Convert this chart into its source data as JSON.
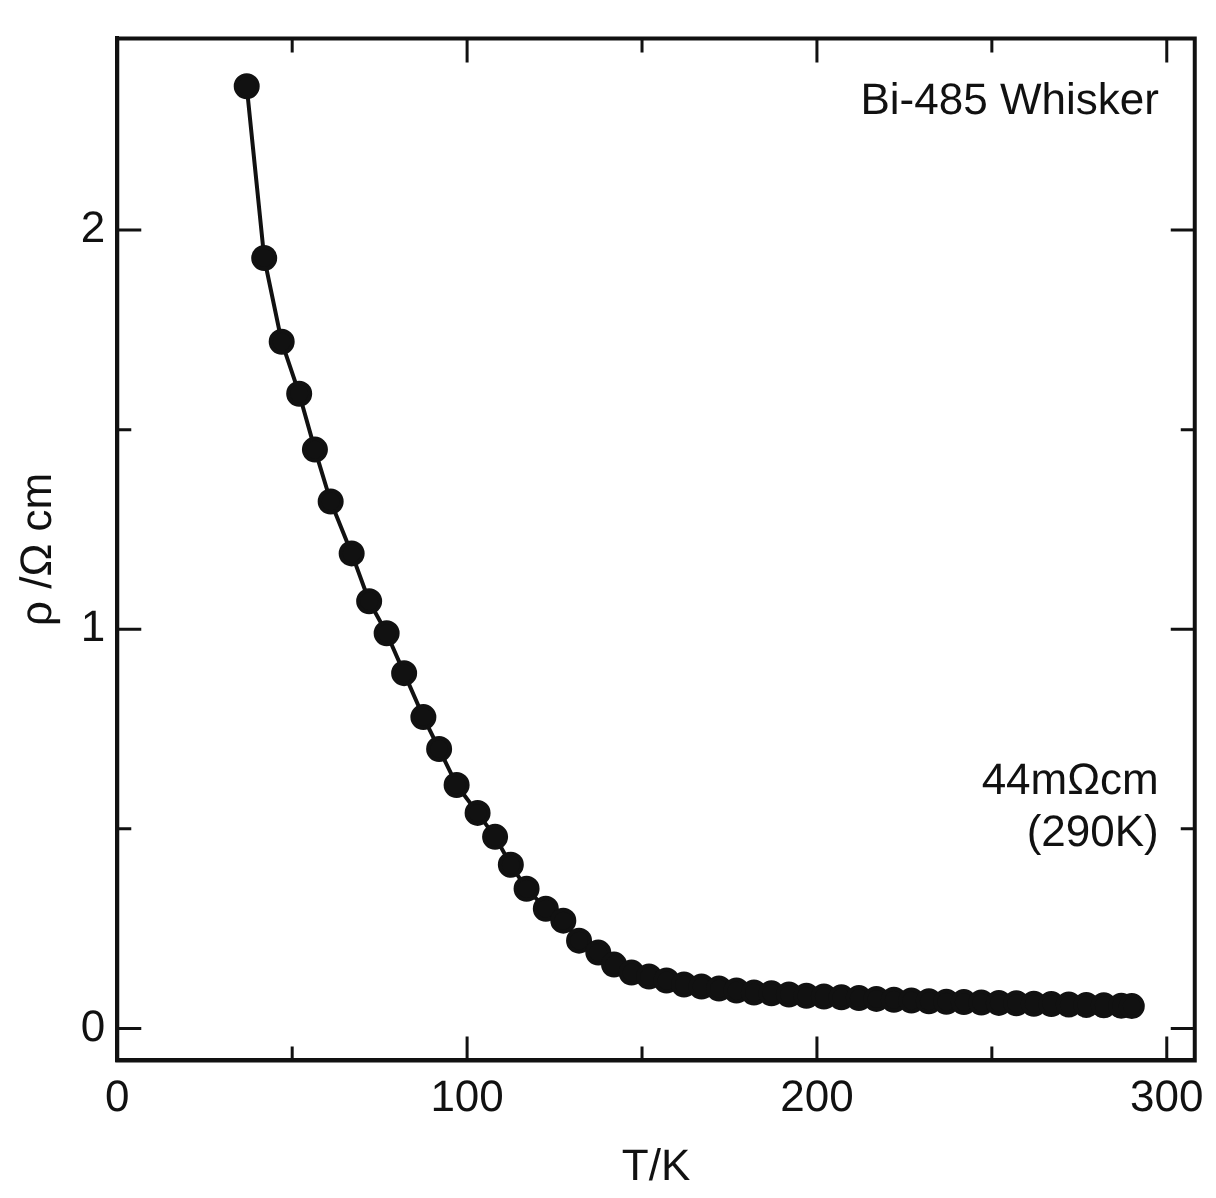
{
  "chart_data": {
    "type": "line",
    "xlabel": "T/K",
    "ylabel": "ρ /Ω cm",
    "annotations": [
      "Bi-485 Whisker",
      "44mΩcm (290K)"
    ],
    "x": [
      37,
      42,
      47,
      52,
      56.5,
      61,
      67,
      72,
      77,
      82,
      87.5,
      92,
      97,
      103,
      108,
      112.5,
      117,
      122.5,
      127.5,
      132,
      137.5,
      142,
      147,
      152,
      157,
      162,
      167,
      172,
      177,
      182,
      187,
      192,
      197,
      202,
      207,
      212,
      217,
      222,
      227,
      232,
      237,
      242,
      247,
      252,
      257,
      262,
      267,
      272,
      277,
      282,
      287,
      290
    ],
    "series": [
      {
        "color": "#111111",
        "values": [
          2.36,
          1.93,
          1.72,
          1.59,
          1.45,
          1.32,
          1.19,
          1.07,
          0.99,
          0.89,
          0.78,
          0.7,
          0.61,
          0.54,
          0.48,
          0.41,
          0.35,
          0.3,
          0.27,
          0.22,
          0.19,
          0.16,
          0.14,
          0.13,
          0.12,
          0.11,
          0.105,
          0.1,
          0.095,
          0.09,
          0.088,
          0.085,
          0.082,
          0.08,
          0.078,
          0.076,
          0.074,
          0.072,
          0.07,
          0.068,
          0.067,
          0.066,
          0.065,
          0.064,
          0.063,
          0.062,
          0.061,
          0.06,
          0.059,
          0.058,
          0.057,
          0.056
        ]
      }
    ],
    "xlim": [
      0,
      308
    ],
    "ylim": [
      -0.08,
      2.48
    ],
    "xticks": [
      0,
      {
        "value": 50,
        "label": null
      },
      100,
      {
        "value": 150,
        "label": null
      },
      200,
      {
        "value": 250,
        "label": null
      },
      300
    ],
    "yticks": [
      0,
      {
        "value": 0.5,
        "label": null
      },
      1,
      {
        "value": 1.5,
        "label": null
      },
      2
    ],
    "grid": false,
    "legend": false,
    "marker": "circle",
    "line_style": "solid"
  }
}
